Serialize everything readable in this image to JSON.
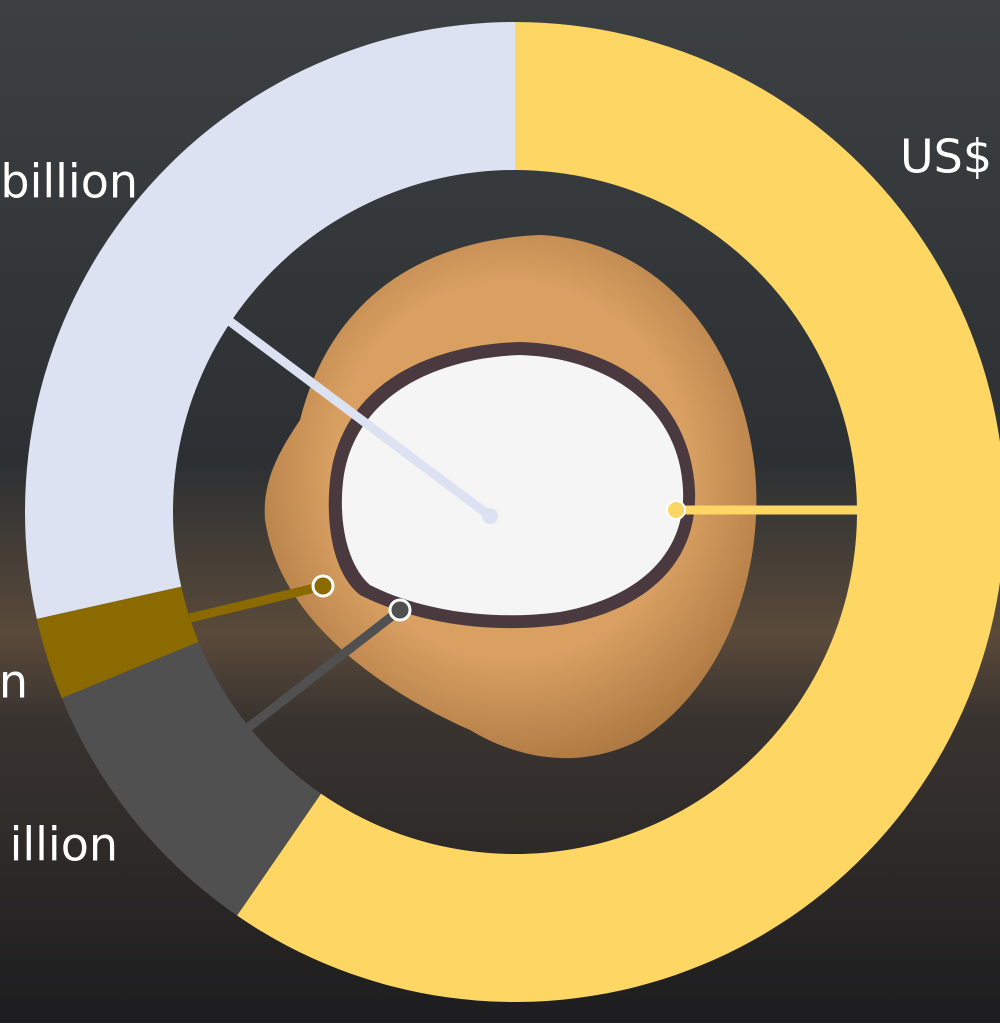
{
  "chart_data": {
    "type": "donut",
    "categories": [
      "US$",
      "illion",
      "n",
      "billion"
    ],
    "values": [
      59.6,
      9.2,
      2.7,
      28.5
    ],
    "colors": [
      "#FDD663",
      "#505050",
      "#8B6A00",
      "#DCE2F1"
    ]
  }
}
